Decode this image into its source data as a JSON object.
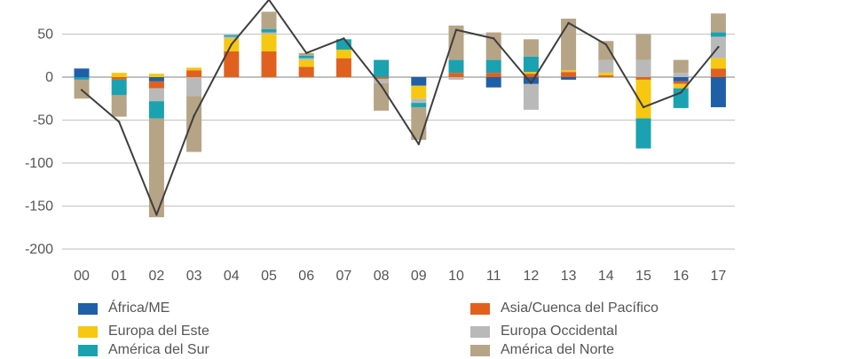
{
  "chart_data": {
    "type": "bar",
    "stacked": true,
    "categories": [
      "00",
      "01",
      "02",
      "03",
      "04",
      "05",
      "06",
      "07",
      "08",
      "09",
      "10",
      "11",
      "12",
      "13",
      "14",
      "15",
      "16",
      "17"
    ],
    "ylim": [
      -200,
      100
    ],
    "yticks": [
      -200,
      -150,
      -100,
      -50,
      0,
      50
    ],
    "grid": true,
    "legend_position": "bottom",
    "series": [
      {
        "name": "África/ME",
        "color": "#1f5fa8",
        "values": [
          10,
          0,
          -5,
          0,
          0,
          0,
          0,
          0,
          0,
          -10,
          0,
          -12,
          -8,
          -3,
          0,
          0,
          -5,
          -35
        ]
      },
      {
        "name": "Asia/Cuenca del Pacífico",
        "color": "#e0611d",
        "values": [
          0,
          -3,
          -8,
          8,
          30,
          30,
          12,
          22,
          -2,
          0,
          5,
          5,
          4,
          6,
          2,
          -3,
          -3,
          10
        ]
      },
      {
        "name": "Europa del Este",
        "color": "#f6c812",
        "values": [
          0,
          5,
          4,
          3,
          15,
          20,
          8,
          10,
          0,
          -15,
          0,
          0,
          2,
          2,
          3,
          -45,
          -5,
          12
        ]
      },
      {
        "name": "Europa Occidental",
        "color": "#b9b9b9",
        "values": [
          0,
          0,
          -15,
          -22,
          2,
          2,
          2,
          0,
          -5,
          -5,
          -3,
          0,
          -30,
          0,
          15,
          20,
          5,
          25
        ]
      },
      {
        "name": "América del Sur",
        "color": "#1aa2b0",
        "values": [
          -3,
          -18,
          -20,
          0,
          2,
          4,
          3,
          12,
          20,
          -5,
          15,
          15,
          18,
          0,
          0,
          -35,
          -23,
          5
        ]
      },
      {
        "name": "América del Norte",
        "color": "#b6a486",
        "values": [
          -22,
          -25,
          -115,
          -65,
          0,
          20,
          3,
          0,
          -32,
          -38,
          40,
          32,
          20,
          60,
          22,
          30,
          15,
          22
        ]
      }
    ],
    "line": {
      "values": [
        -15,
        -52,
        -160,
        -45,
        38,
        90,
        28,
        45,
        -10,
        -78,
        55,
        45,
        -7,
        63,
        38,
        -35,
        -18,
        35
      ],
      "color": "#3e3e3e"
    }
  }
}
